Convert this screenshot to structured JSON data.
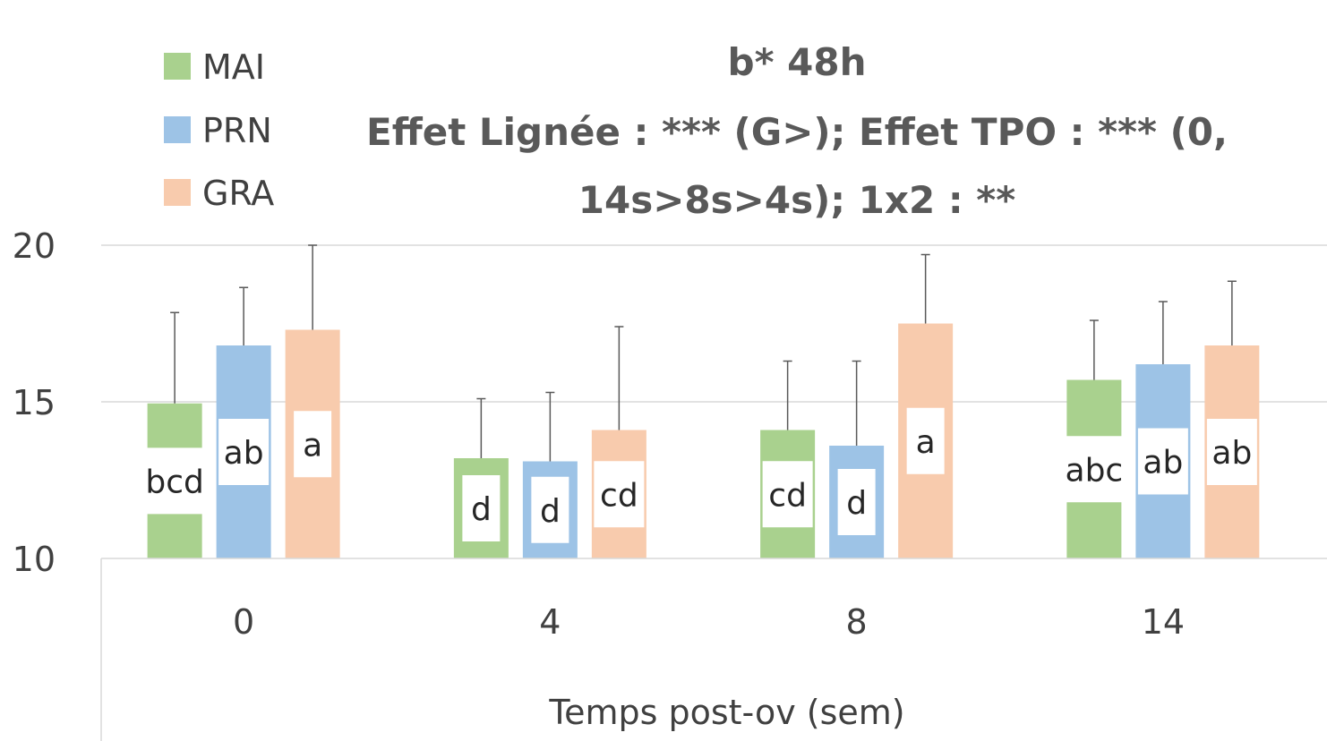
{
  "chart_data": {
    "type": "bar",
    "title_lines": [
      "b* 48h",
      "Effet Lignée : *** (G>); Effet TPO : *** (0,",
      "14s>8s>4s); 1x2 : **"
    ],
    "xlabel": "Temps post-ov (sem)",
    "ylabel": "",
    "categories": [
      "0",
      "4",
      "8",
      "14"
    ],
    "ylim": [
      10,
      20
    ],
    "yticks": [
      "10",
      "15",
      "20"
    ],
    "grid": true,
    "legend_position": "top-left",
    "series": [
      {
        "name": "MAI",
        "color": "#a9d18e",
        "values": [
          14.95,
          13.2,
          14.1,
          15.7
        ],
        "errors": [
          2.9,
          1.9,
          2.2,
          1.9
        ],
        "labels": [
          "bcd",
          "d",
          "cd",
          "abc"
        ]
      },
      {
        "name": "PRN",
        "color": "#9dc3e6",
        "values": [
          16.8,
          13.1,
          13.6,
          16.2
        ],
        "errors": [
          1.85,
          2.2,
          2.7,
          2.0
        ],
        "labels": [
          "ab",
          "d",
          "d",
          "ab"
        ]
      },
      {
        "name": "GRA",
        "color": "#f8cbad",
        "values": [
          17.3,
          14.1,
          17.5,
          16.8
        ],
        "errors": [
          2.8,
          3.3,
          2.2,
          2.05
        ],
        "labels": [
          "a",
          "cd",
          "a",
          "ab"
        ]
      }
    ]
  }
}
